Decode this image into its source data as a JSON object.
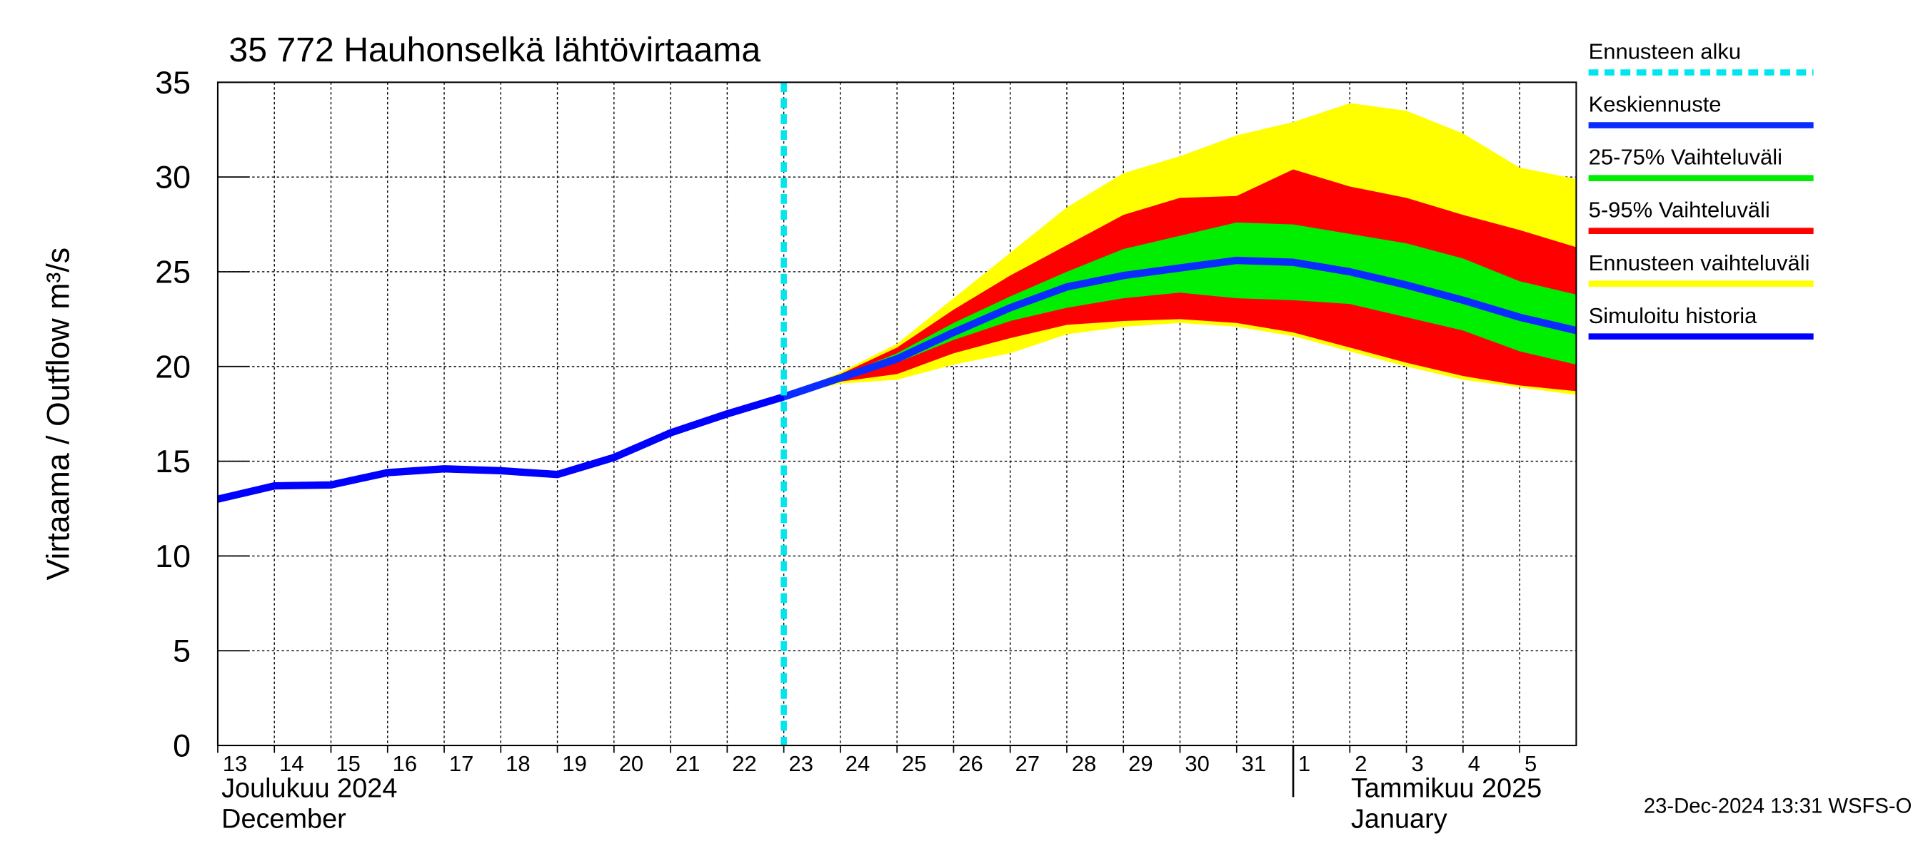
{
  "chart_data": {
    "type": "line",
    "title": "35 772 Hauhonselkä lähtövirtaama",
    "y_label": "Virtaama / Outflow    m³/s",
    "footer": "23-Dec-2024 13:31 WSFS-O",
    "xlim": [
      "2024-12-13",
      "2025-01-06"
    ],
    "xticks": [
      {
        "value": "2024-12-13",
        "label": "13"
      },
      {
        "value": "2024-12-14",
        "label": "14"
      },
      {
        "value": "2024-12-15",
        "label": "15"
      },
      {
        "value": "2024-12-16",
        "label": "16"
      },
      {
        "value": "2024-12-17",
        "label": "17"
      },
      {
        "value": "2024-12-18",
        "label": "18"
      },
      {
        "value": "2024-12-19",
        "label": "19"
      },
      {
        "value": "2024-12-20",
        "label": "20"
      },
      {
        "value": "2024-12-21",
        "label": "21"
      },
      {
        "value": "2024-12-22",
        "label": "22"
      },
      {
        "value": "2024-12-23",
        "label": "23"
      },
      {
        "value": "2024-12-24",
        "label": "24"
      },
      {
        "value": "2024-12-25",
        "label": "25"
      },
      {
        "value": "2024-12-26",
        "label": "26"
      },
      {
        "value": "2024-12-27",
        "label": "27"
      },
      {
        "value": "2024-12-28",
        "label": "28"
      },
      {
        "value": "2024-12-29",
        "label": "29"
      },
      {
        "value": "2024-12-30",
        "label": "30"
      },
      {
        "value": "2024-12-31",
        "label": "31"
      },
      {
        "value": "2025-01-01",
        "label": "1"
      },
      {
        "value": "2025-01-02",
        "label": "2"
      },
      {
        "value": "2025-01-03",
        "label": "3"
      },
      {
        "value": "2025-01-04",
        "label": "4"
      },
      {
        "value": "2025-01-05",
        "label": "5"
      }
    ],
    "month_labels": [
      {
        "at": "2024-12-13",
        "lines": [
          "Joulukuu  2024",
          "December"
        ]
      },
      {
        "at": "2025-01-01",
        "lines": [
          "Tammikuu  2025",
          "January"
        ]
      }
    ],
    "ylim": [
      0,
      35
    ],
    "yticks": [
      0,
      5,
      10,
      15,
      20,
      25,
      30,
      35
    ],
    "grid": true,
    "forecast_start": {
      "name": "Ennusteen alku",
      "x": "2024-12-23",
      "color": "#00e5ee"
    },
    "series": [
      {
        "name": "Keskiennuste",
        "type": "line",
        "color": "#0a2cff",
        "x": [
          "2024-12-23",
          "2024-12-24",
          "2024-12-25",
          "2024-12-26",
          "2024-12-27",
          "2024-12-28",
          "2024-12-29",
          "2024-12-30",
          "2024-12-31",
          "2025-01-01",
          "2025-01-02",
          "2025-01-03",
          "2025-01-04",
          "2025-01-05",
          "2025-01-06"
        ],
        "values": [
          18.4,
          19.4,
          20.4,
          21.8,
          23.1,
          24.2,
          24.8,
          25.2,
          25.6,
          25.5,
          25.0,
          24.3,
          23.5,
          22.6,
          21.9
        ]
      },
      {
        "name": "25-75% Vaihteluväli",
        "type": "band",
        "color": "#00ee00",
        "x": [
          "2024-12-23",
          "2024-12-24",
          "2024-12-25",
          "2024-12-26",
          "2024-12-27",
          "2024-12-28",
          "2024-12-29",
          "2024-12-30",
          "2024-12-31",
          "2025-01-01",
          "2025-01-02",
          "2025-01-03",
          "2025-01-04",
          "2025-01-05",
          "2025-01-06"
        ],
        "low": [
          18.4,
          19.4,
          20.2,
          21.4,
          22.4,
          23.1,
          23.6,
          23.9,
          23.6,
          23.5,
          23.3,
          22.6,
          21.9,
          20.8,
          20.1
        ],
        "high": [
          18.4,
          19.5,
          20.7,
          22.3,
          23.7,
          25.0,
          26.2,
          26.9,
          27.6,
          27.5,
          27.0,
          26.5,
          25.7,
          24.5,
          23.8
        ]
      },
      {
        "name": "5-95% Vaihteluväli",
        "type": "band",
        "color": "#ff0000",
        "x": [
          "2024-12-23",
          "2024-12-24",
          "2024-12-25",
          "2024-12-26",
          "2024-12-27",
          "2024-12-28",
          "2024-12-29",
          "2024-12-30",
          "2024-12-31",
          "2025-01-01",
          "2025-01-02",
          "2025-01-03",
          "2025-01-04",
          "2025-01-05",
          "2025-01-06"
        ],
        "low": [
          18.4,
          19.2,
          19.6,
          20.7,
          21.5,
          22.2,
          22.4,
          22.5,
          22.3,
          21.8,
          21.0,
          20.2,
          19.5,
          19.0,
          18.7
        ],
        "high": [
          18.4,
          19.6,
          21.0,
          23.0,
          24.8,
          26.4,
          28.0,
          28.9,
          29.0,
          30.4,
          29.5,
          28.9,
          28.0,
          27.2,
          26.3
        ]
      },
      {
        "name": "Ennusteen vaihteluväli",
        "type": "band",
        "color": "#ffff00",
        "x": [
          "2024-12-23",
          "2024-12-24",
          "2024-12-25",
          "2024-12-26",
          "2024-12-27",
          "2024-12-28",
          "2024-12-29",
          "2024-12-30",
          "2024-12-31",
          "2025-01-01",
          "2025-01-02",
          "2025-01-03",
          "2025-01-04",
          "2025-01-05",
          "2025-01-06"
        ],
        "low": [
          18.4,
          19.1,
          19.3,
          20.1,
          20.7,
          21.7,
          22.1,
          22.3,
          22.1,
          21.6,
          20.8,
          20.0,
          19.3,
          18.9,
          18.5
        ],
        "high": [
          18.4,
          19.7,
          21.2,
          23.6,
          26.0,
          28.4,
          30.2,
          31.1,
          32.2,
          32.9,
          33.9,
          33.5,
          32.3,
          30.5,
          29.9
        ]
      },
      {
        "name": "Simuloitu historia",
        "type": "line",
        "color": "#0000ff",
        "x": [
          "2024-12-13",
          "2024-12-14",
          "2024-12-15",
          "2024-12-16",
          "2024-12-17",
          "2024-12-18",
          "2024-12-19",
          "2024-12-20",
          "2024-12-21",
          "2024-12-22",
          "2024-12-23"
        ],
        "values": [
          13.0,
          13.7,
          13.75,
          14.4,
          14.6,
          14.5,
          14.3,
          15.2,
          16.5,
          17.5,
          18.4
        ]
      }
    ]
  }
}
